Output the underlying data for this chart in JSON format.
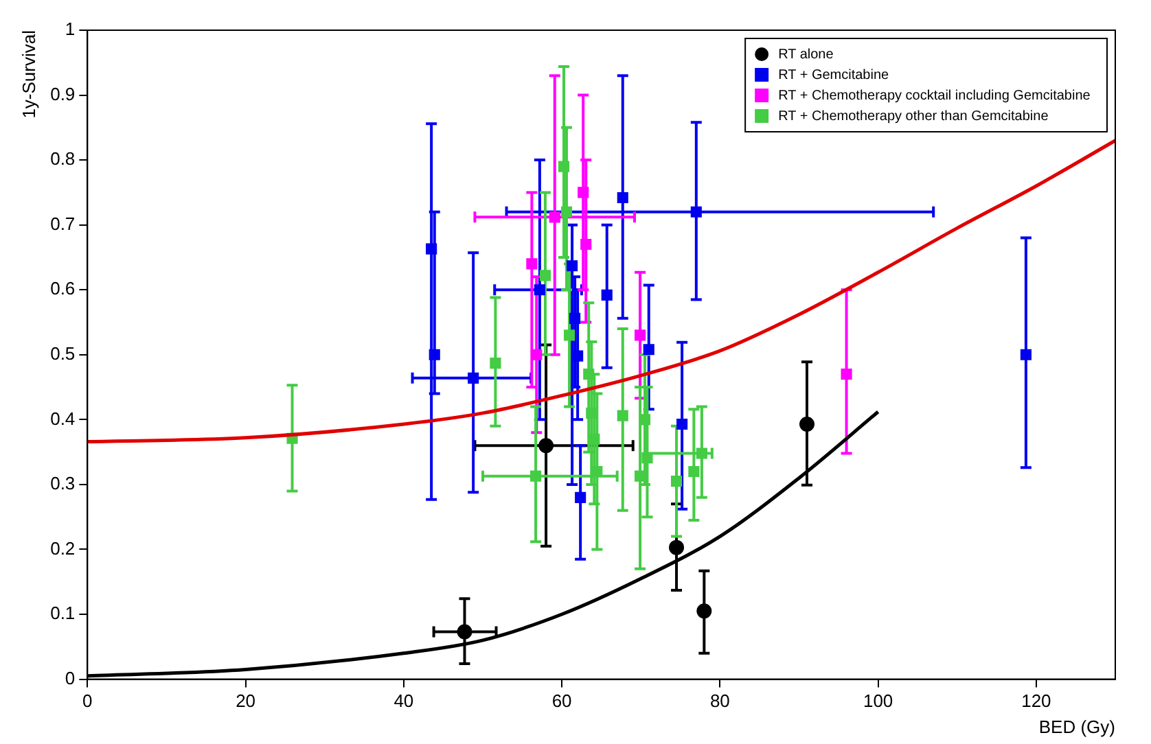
{
  "chart_data": {
    "type": "scatter",
    "xlabel": "BED (Gy)",
    "ylabel": "1y-Survival",
    "xlim": [
      0,
      130
    ],
    "ylim": [
      0,
      1
    ],
    "xticks": [
      0,
      20,
      40,
      60,
      80,
      100,
      120
    ],
    "yticks": [
      0,
      0.1,
      0.2,
      0.3,
      0.4,
      0.5,
      0.6,
      0.7,
      0.8,
      0.9,
      1
    ],
    "grid": false,
    "legend": "top right",
    "series": [
      {
        "name": "RT alone",
        "color": "#000000",
        "marker": "circle",
        "x": [
          47.7,
          58,
          74.5,
          78,
          91
        ],
        "values": [
          0.073,
          0.36,
          0.203,
          0.105,
          0.393
        ],
        "errors": [
          [
            0.024,
            0.124
          ],
          [
            0.205,
            0.515
          ],
          [
            0.137,
            0.27
          ],
          [
            0.04,
            0.167
          ],
          [
            0.299,
            0.489
          ]
        ],
        "xerrors": [
          [
            43.8,
            51.7
          ],
          [
            49,
            69
          ],
          null,
          null,
          null
        ]
      },
      {
        "name": "RT + Gemcitabine",
        "color": "#0000ee",
        "marker": "square",
        "x": [
          43.5,
          43.9,
          48.8,
          57.2,
          65.7,
          67.7,
          77,
          71,
          75.2,
          118.7,
          61.3,
          61.65,
          62,
          62.35
        ],
        "values": [
          0.663,
          0.5,
          0.464,
          0.6,
          0.592,
          0.742,
          0.72,
          0.508,
          0.393,
          0.5,
          0.637,
          0.556,
          0.498,
          0.28
        ],
        "errors": [
          [
            0.277,
            0.856
          ],
          [
            0.44,
            0.72
          ],
          [
            0.288,
            0.657
          ],
          [
            0.4,
            0.8
          ],
          [
            0.48,
            0.7
          ],
          [
            0.556,
            0.93
          ],
          [
            0.585,
            0.858
          ],
          [
            0.416,
            0.607
          ],
          [
            0.262,
            0.519
          ],
          [
            0.326,
            0.68
          ],
          [
            0.3,
            0.7
          ],
          [
            0.45,
            0.62
          ],
          [
            0.4,
            0.6
          ],
          [
            0.185,
            0.36
          ]
        ],
        "xerrors": [
          null,
          null,
          [
            41.1,
            56.1
          ],
          [
            51.5,
            62.5
          ],
          null,
          null,
          [
            53,
            107
          ],
          null,
          null,
          null,
          null,
          null,
          null,
          null
        ]
      },
      {
        "name": "RT + Chemotherapy cocktail including Gemcitabine",
        "color": "#ff00ff",
        "marker": "square",
        "x": [
          59.1,
          56.2,
          56.8,
          69.9,
          96,
          62.7,
          63.05
        ],
        "values": [
          0.712,
          0.64,
          0.5,
          0.53,
          0.47,
          0.75,
          0.67
        ],
        "errors": [
          [
            0.5,
            0.93
          ],
          [
            0.45,
            0.75
          ],
          [
            0.38,
            0.62
          ],
          [
            0.433,
            0.627
          ],
          [
            0.348,
            0.6
          ],
          [
            0.6,
            0.9
          ],
          [
            0.55,
            0.8
          ]
        ],
        "xerrors": [
          [
            49,
            69.2
          ],
          null,
          null,
          null,
          null,
          null,
          null
        ]
      },
      {
        "name": "RT + Chemotherapy other than Gemcitabine",
        "color": "#44cc44",
        "marker": "square",
        "x": [
          25.9,
          51.6,
          57.9,
          56.7,
          60.25,
          60.6,
          60.95,
          63.4,
          63.75,
          64.1,
          64.45,
          67.7,
          69.9,
          70.8,
          70.5,
          74.5,
          76.7,
          77.7
        ],
        "values": [
          0.371,
          0.487,
          0.622,
          0.313,
          0.79,
          0.72,
          0.53,
          0.47,
          0.41,
          0.37,
          0.32,
          0.406,
          0.313,
          0.341,
          0.4,
          0.305,
          0.32,
          0.348
        ],
        "errors": [
          [
            0.29,
            0.453
          ],
          [
            0.39,
            0.588
          ],
          [
            0.5,
            0.75
          ],
          [
            0.212,
            0.42
          ],
          [
            0.65,
            0.944
          ],
          [
            0.6,
            0.85
          ],
          [
            0.42,
            0.64
          ],
          [
            0.35,
            0.58
          ],
          [
            0.3,
            0.52
          ],
          [
            0.27,
            0.47
          ],
          [
            0.2,
            0.44
          ],
          [
            0.26,
            0.54
          ],
          [
            0.17,
            0.45
          ],
          [
            0.25,
            0.45
          ],
          [
            0.3,
            0.5
          ],
          [
            0.22,
            0.39
          ],
          [
            0.245,
            0.416
          ],
          [
            0.28,
            0.42
          ]
        ],
        "xerrors": [
          null,
          null,
          null,
          [
            50,
            67
          ],
          null,
          null,
          null,
          null,
          null,
          null,
          null,
          null,
          null,
          null,
          null,
          null,
          null,
          [
            70.5,
            79
          ]
        ]
      },
      {
        "type": "line",
        "color": "#e00000",
        "marker": "none",
        "x": [
          0,
          20,
          40,
          50,
          60,
          70,
          80,
          90,
          100,
          110,
          120,
          130
        ],
        "values": [
          0.366,
          0.372,
          0.393,
          0.41,
          0.437,
          0.468,
          0.506,
          0.562,
          0.627,
          0.695,
          0.76,
          0.83
        ]
      },
      {
        "type": "line",
        "color": "#000000",
        "marker": "none",
        "x": [
          0,
          20,
          40,
          50,
          60,
          70,
          80,
          90,
          100
        ],
        "values": [
          0.005,
          0.015,
          0.04,
          0.06,
          0.1,
          0.155,
          0.22,
          0.31,
          0.412
        ]
      }
    ]
  }
}
